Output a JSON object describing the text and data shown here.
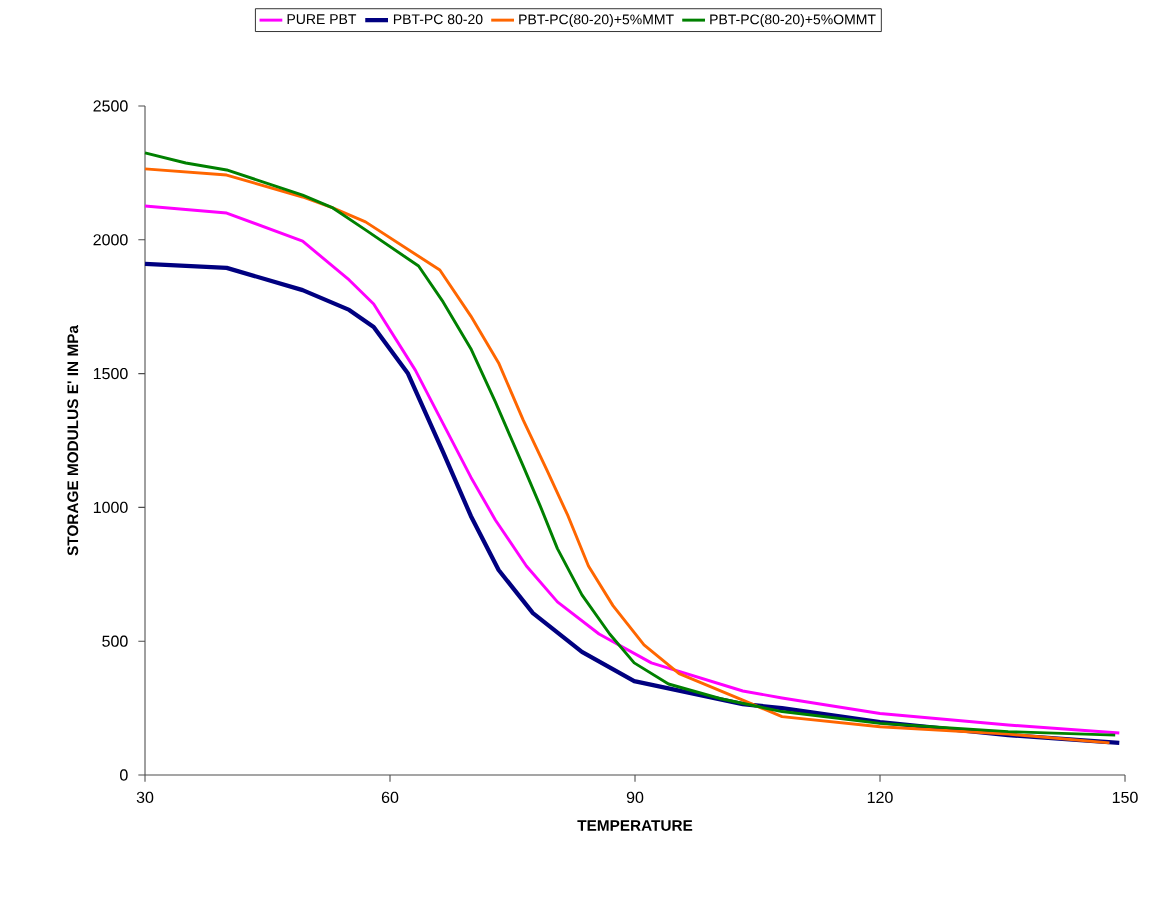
{
  "chart_data": {
    "type": "line",
    "xlabel": "TEMPERATURE",
    "ylabel": "STORAGE MODULUS  E' IN MPa",
    "xlim": [
      30,
      150
    ],
    "xticks": [
      30,
      60,
      90,
      120,
      150
    ],
    "ylim": [
      0,
      2500
    ],
    "yticks": [
      0,
      500,
      1000,
      1500,
      2000,
      2500
    ],
    "grid": false,
    "legend": "top",
    "series": [
      {
        "name": "PURE PBT",
        "color": "#ff00ff",
        "x": [
          30,
          40,
          49.3,
          55,
          58,
          63.1,
          66.5,
          69.9,
          72.9,
          76.7,
          80.5,
          85.6,
          92,
          103.2,
          108,
          120,
          135.7,
          149.3
        ],
        "values": [
          2126,
          2100,
          1995,
          1850,
          1760,
          1513,
          1313,
          1113,
          953,
          781,
          647,
          527,
          419,
          314,
          288,
          230,
          187,
          157
        ]
      },
      {
        "name": "PBT-PC 80-20",
        "color": "#000080",
        "x": [
          30,
          40,
          49.3,
          55,
          58,
          62.2,
          66.5,
          69.9,
          73.3,
          77.5,
          83.5,
          89.9,
          103.2,
          108,
          120,
          135.7,
          149.3
        ],
        "values": [
          1910,
          1895,
          1812,
          1738,
          1674,
          1500,
          1207,
          968,
          766,
          605,
          460,
          351,
          265,
          250,
          198,
          149,
          120
        ]
      },
      {
        "name": "PBT-PC(80-20)+5%MMT",
        "color": "#ff6600",
        "x": [
          30,
          40,
          49.3,
          53,
          57,
          66.1,
          69.9,
          73.3,
          76.3,
          79.2,
          81.8,
          84.3,
          87.3,
          91.1,
          95.4,
          103.2,
          108,
          120,
          135.7,
          148.1
        ],
        "values": [
          2265,
          2242,
          2160,
          2119,
          2067,
          1887,
          1715,
          1540,
          1327,
          1140,
          968,
          781,
          633,
          486,
          379,
          280,
          218,
          180,
          153,
          120
        ]
      },
      {
        "name": "PBT-PC(80-20)+5%OMMT",
        "color": "#008000",
        "x": [
          30,
          35,
          40,
          49.3,
          53,
          57,
          63.5,
          66.5,
          69.9,
          72.9,
          76.3,
          78.4,
          80.5,
          83.5,
          86.9,
          89.9,
          94.1,
          100.5,
          108,
          120,
          135.7,
          148.8
        ],
        "values": [
          2325,
          2287,
          2261,
          2167,
          2119,
          2037,
          1902,
          1768,
          1593,
          1394,
          1155,
          1005,
          846,
          673,
          527,
          419,
          340,
          285,
          237,
          193,
          162,
          149
        ]
      }
    ]
  }
}
